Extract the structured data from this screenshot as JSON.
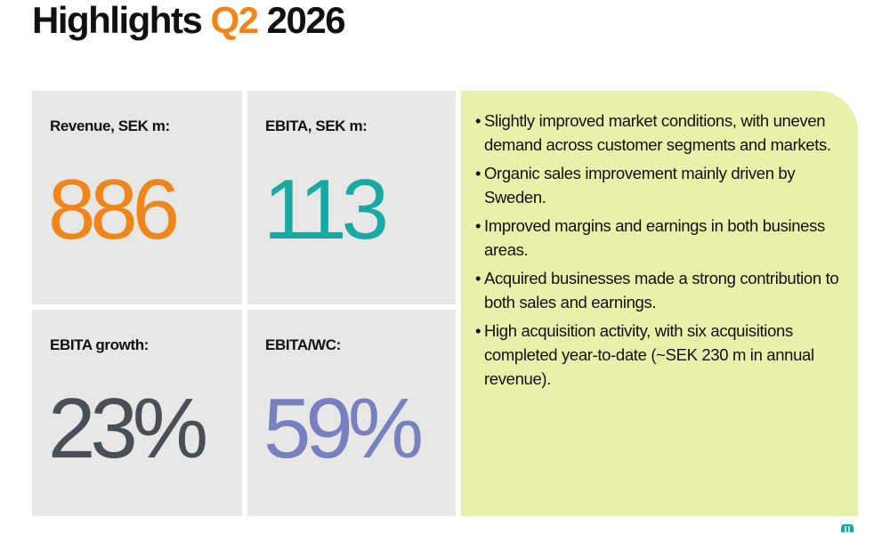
{
  "header": {
    "title_before": "Highlights ",
    "title_accent": "Q2",
    "title_after": " 2026"
  },
  "kpis": [
    {
      "label": "Revenue, SEK m:",
      "value": "886",
      "color": "#f0851a"
    },
    {
      "label": "EBITA, SEK m:",
      "value": "113",
      "color": "#19a9a4"
    },
    {
      "label": "EBITA growth:",
      "value": "23%",
      "color": "#4a4f57"
    },
    {
      "label": "EBITA/WC:",
      "value": "59%",
      "color": "#7880c0"
    }
  ],
  "highlights": {
    "bullet_symbol": "•",
    "items": [
      "Slightly improved market conditions, with uneven demand across customer segments and markets.",
      "Organic sales improvement mainly driven by Sweden.",
      "Improved margins and earnings in both business areas.",
      "Acquired businesses made a strong contribution to both sales and earnings.",
      "High acquisition activity, with six acquisitions completed year-to-date (~SEK 230 m in annual revenue)."
    ]
  },
  "colors": {
    "tile_background": "#e7e7e5",
    "panel_background": "#e9f0a9",
    "title_accent": "#f0851a",
    "logo": "#19a9a4"
  },
  "footer": {
    "logo_icon": "company-logo-icon"
  }
}
